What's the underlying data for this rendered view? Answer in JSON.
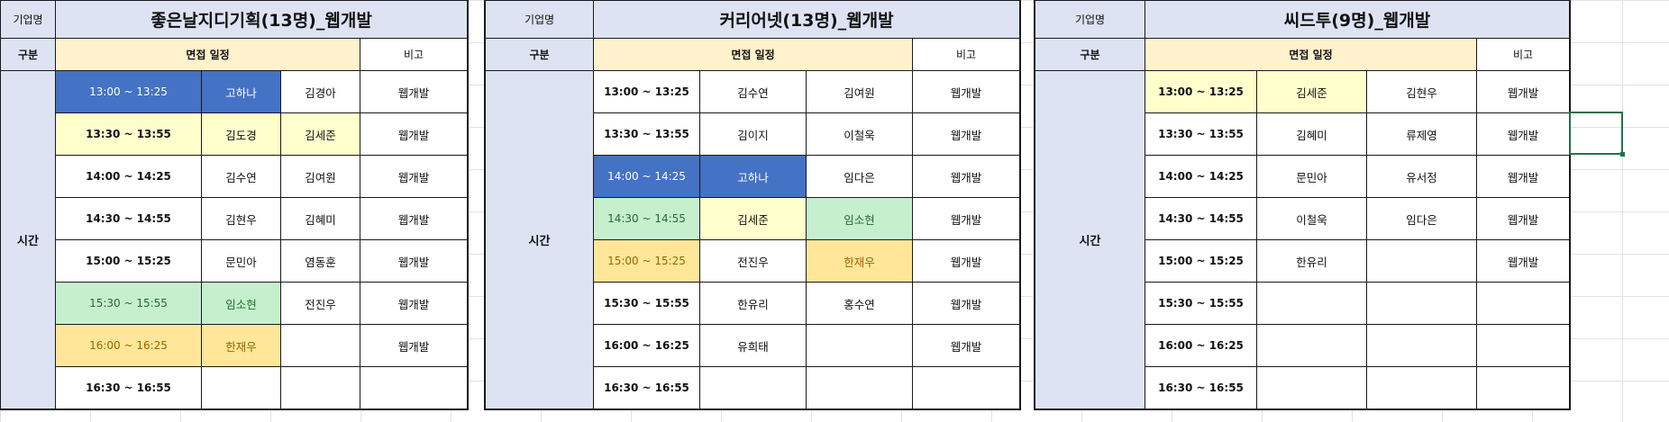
{
  "panels": [
    {
      "label_company": "기업명",
      "title": "좋은날지디기획(13명)_웹개발",
      "label_category": "구분",
      "label_schedule": "면접 일정",
      "label_note": "비고",
      "label_time": "시간",
      "rows": [
        {
          "time": "13:00 ~ 13:25",
          "a": "고하나",
          "b": "김경아",
          "note": "웹개발"
        },
        {
          "time": "13:30 ~ 13:55",
          "a": "김도경",
          "b": "김세준",
          "note": "웹개발"
        },
        {
          "time": "14:00 ~ 14:25",
          "a": "김수연",
          "b": "김여원",
          "note": "웹개발"
        },
        {
          "time": "14:30 ~ 14:55",
          "a": "김현우",
          "b": "김혜미",
          "note": "웹개발"
        },
        {
          "time": "15:00 ~ 15:25",
          "a": "문민아",
          "b": "염동훈",
          "note": "웹개발"
        },
        {
          "time": "15:30 ~ 15:55",
          "a": "임소현",
          "b": "전진우",
          "note": "웹개발"
        },
        {
          "time": "16:00 ~ 16:25",
          "a": "한재우",
          "b": "",
          "note": "웹개발"
        },
        {
          "time": "16:30 ~ 16:55",
          "a": "",
          "b": "",
          "note": ""
        }
      ]
    },
    {
      "label_company": "기업명",
      "title": "커리어넷(13명)_웹개발",
      "label_category": "구분",
      "label_schedule": "면접 일정",
      "label_note": "비고",
      "label_time": "시간",
      "rows": [
        {
          "time": "13:00 ~ 13:25",
          "a": "김수연",
          "b": "김여원",
          "note": "웹개발"
        },
        {
          "time": "13:30 ~ 13:55",
          "a": "김이지",
          "b": "이철욱",
          "note": "웹개발"
        },
        {
          "time": "14:00 ~ 14:25",
          "a": "고하나",
          "b": "임다은",
          "note": "웹개발"
        },
        {
          "time": "14:30 ~ 14:55",
          "a": "김세준",
          "b": "임소현",
          "note": "웹개발"
        },
        {
          "time": "15:00 ~ 15:25",
          "a": "전진우",
          "b": "한재우",
          "note": "웹개발"
        },
        {
          "time": "15:30 ~ 15:55",
          "a": "한유리",
          "b": "홍수연",
          "note": "웹개발"
        },
        {
          "time": "16:00 ~ 16:25",
          "a": "유희태",
          "b": "",
          "note": "웹개발"
        },
        {
          "time": "16:30 ~ 16:55",
          "a": "",
          "b": "",
          "note": ""
        }
      ]
    },
    {
      "label_company": "기업명",
      "title": "씨드투(9명)_웹개발",
      "label_category": "구분",
      "label_schedule": "면접 일정",
      "label_note": "비고",
      "label_time": "시간",
      "rows": [
        {
          "time": "13:00 ~ 13:25",
          "a": "김세준",
          "b": "김현우",
          "note": "웹개발"
        },
        {
          "time": "13:30 ~ 13:55",
          "a": "김혜미",
          "b": "류제영",
          "note": "웹개발"
        },
        {
          "time": "14:00 ~ 14:25",
          "a": "문민아",
          "b": "유서정",
          "note": "웹개발"
        },
        {
          "time": "14:30 ~ 14:55",
          "a": "이철욱",
          "b": "임다은",
          "note": "웹개발"
        },
        {
          "time": "15:00 ~ 15:25",
          "a": "한유리",
          "b": "",
          "note": "웹개발"
        },
        {
          "time": "15:30 ~ 15:55",
          "a": "",
          "b": "",
          "note": ""
        },
        {
          "time": "16:00 ~ 16:25",
          "a": "",
          "b": "",
          "note": ""
        },
        {
          "time": "16:30 ~ 16:55",
          "a": "",
          "b": "",
          "note": ""
        }
      ]
    }
  ],
  "colors": {
    "header_blue": "#dde3f3",
    "schedule_header": "#fff2cc",
    "highlight_blue": "#4472c4",
    "highlight_yellow": "#ffffcc",
    "highlight_green": "#c6efce",
    "highlight_orange": "#ffe699",
    "selection_green": "#217346"
  }
}
